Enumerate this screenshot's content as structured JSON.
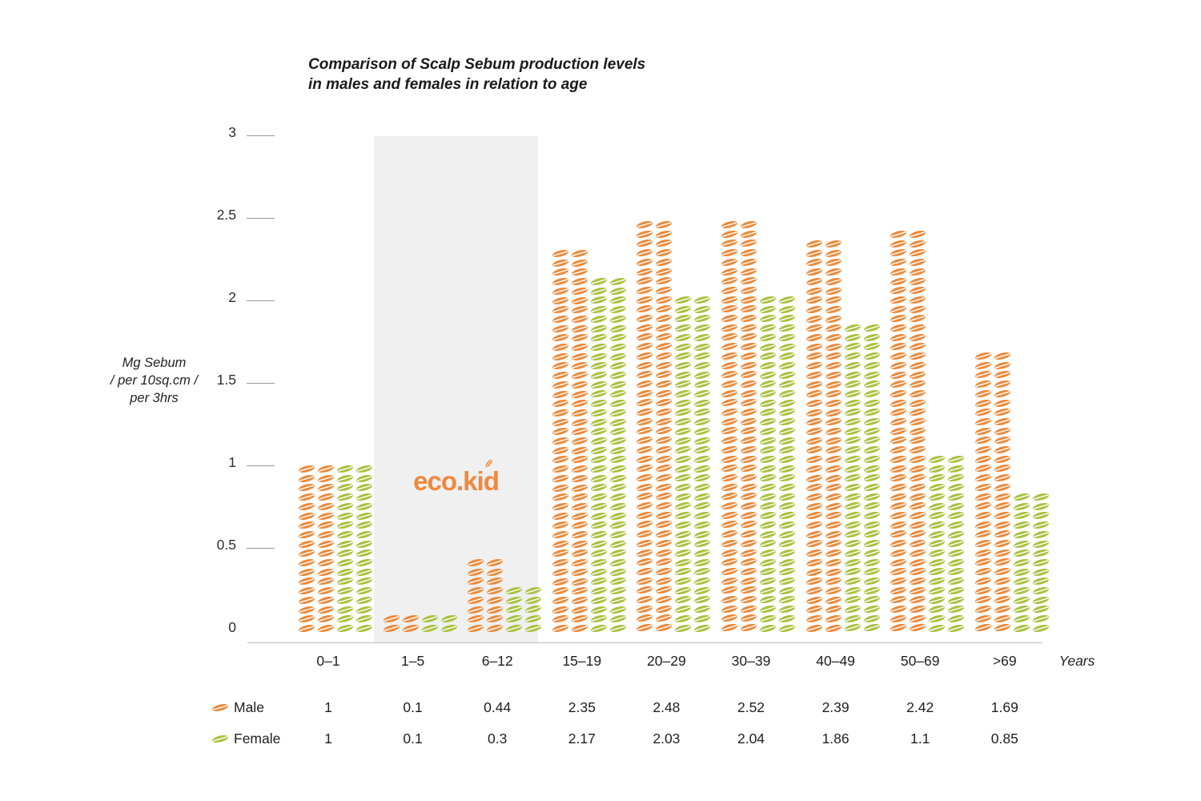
{
  "title": {
    "line1": "Comparison of Scalp Sebum production levels",
    "line2": "in males and females in relation to age"
  },
  "y_axis": {
    "label_lines": [
      "Mg Sebum",
      "/ per 10sq.cm /",
      "per 3hrs"
    ],
    "ticks": [
      "3",
      "2.5",
      "2",
      "1.5",
      "1",
      "0.5",
      "0"
    ]
  },
  "x_axis": {
    "unit_label": "Years"
  },
  "logo": {
    "text": "eco.kid",
    "color": "#f0883e"
  },
  "legend": {
    "male_label": "Male",
    "female_label": "Female"
  },
  "chart_data": {
    "type": "bar",
    "subtype": "pictogram-leaf-stack",
    "title": "Comparison of Scalp Sebum production levels in males and females in relation to age",
    "categories": [
      "0–1",
      "1–5",
      "6–12",
      "15–19",
      "20–29",
      "30–39",
      "40–49",
      "50–69",
      ">69"
    ],
    "series": [
      {
        "name": "Male",
        "color": "#eb8a3c",
        "values": [
          1,
          0.1,
          0.44,
          2.35,
          2.48,
          2.52,
          2.39,
          2.42,
          1.69
        ]
      },
      {
        "name": "Female",
        "color": "#a9c13f",
        "values": [
          1,
          0.1,
          0.3,
          2.17,
          2.03,
          2.04,
          1.86,
          1.1,
          0.85
        ]
      }
    ],
    "ylabel": "Mg Sebum / per 10sq.cm / per 3hrs",
    "xlabel": "Years",
    "ylim": [
      0,
      3
    ],
    "yticks": [
      3,
      2.5,
      2,
      1.5,
      1,
      0.5,
      0
    ],
    "grid": false,
    "legend_position": "bottom-left",
    "values_table_shown": true,
    "highlight_band": {
      "over_categories": [
        "1–5",
        "6–12"
      ],
      "color": "#f0f0f0"
    }
  }
}
